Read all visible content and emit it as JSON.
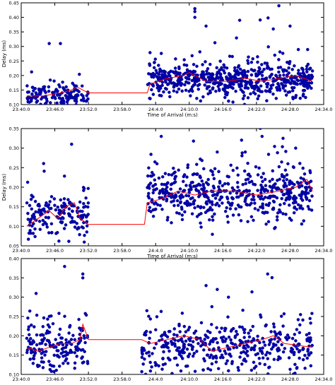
{
  "chart_data": [
    {
      "type": "scatter",
      "xlabel": "Time of Arrival (m:s)",
      "ylabel": "Delay (ms)",
      "xlim": [
        "23:40.0",
        "24:34.0"
      ],
      "ylim": [
        0.1,
        0.45
      ],
      "xticks": [
        "23:40.0",
        "23:46.0",
        "23:52.0",
        "23:58.0",
        "24:4.0",
        "24:10.0",
        "24:16.0",
        "24:22.0",
        "24:28.0",
        "24:34.0"
      ],
      "yticks": [
        "0.10",
        "0.15",
        "0.20",
        "0.25",
        "0.30",
        "0.35",
        "0.40",
        "0.45"
      ],
      "series": [
        {
          "kind": "points",
          "color": "#0000b4",
          "segments": [
            {
              "x_start": "23:41.0",
              "x_end": "23:52.0",
              "mean": 0.13,
              "spread": 0.025,
              "count": 160
            },
            {
              "x_start": "24:2.5",
              "x_end": "24:32.0",
              "mean": 0.18,
              "spread": 0.035,
              "count": 620
            }
          ],
          "outliers": [
            {
              "x": "23:47.0",
              "y": 0.31
            },
            {
              "x": "23:45.0",
              "y": 0.31
            },
            {
              "x": "24:11.0",
              "y": 0.43
            },
            {
              "x": "24:11.0",
              "y": 0.42
            },
            {
              "x": "24:11.0",
              "y": 0.4
            },
            {
              "x": "24:26.0",
              "y": 0.44
            },
            {
              "x": "24:19.0",
              "y": 0.39
            },
            {
              "x": "24:13.0",
              "y": 0.37
            },
            {
              "x": "24:25.0",
              "y": 0.36
            },
            {
              "x": "24:28.0",
              "y": 0.37
            }
          ]
        },
        {
          "kind": "line",
          "color": "#ff0000",
          "points": [
            [
              "23:41.0",
              0.13
            ],
            [
              "23:44.0",
              0.13
            ],
            [
              "23:47.0",
              0.14
            ],
            [
              "23:49.0",
              0.15
            ],
            [
              "23:50.0",
              0.16
            ],
            [
              "23:52.0",
              0.14
            ],
            [
              "24:2.5",
              0.14
            ],
            [
              "24:3.0",
              0.17
            ],
            [
              "24:6.0",
              0.19
            ],
            [
              "24:9.0",
              0.2
            ],
            [
              "24:10.0",
              0.21
            ],
            [
              "24:13.0",
              0.18
            ],
            [
              "24:17.0",
              0.18
            ],
            [
              "24:20.0",
              0.19
            ],
            [
              "24:23.0",
              0.18
            ],
            [
              "24:26.0",
              0.19
            ],
            [
              "24:29.0",
              0.2
            ],
            [
              "24:32.0",
              0.18
            ]
          ]
        }
      ]
    },
    {
      "type": "scatter",
      "xlabel": "Time of Arrival (m:s)",
      "ylabel": "Delay (ms)",
      "xlim": [
        "23:40.0",
        "24:34.0"
      ],
      "ylim": [
        0.05,
        0.35
      ],
      "xticks": [
        "23:40.0",
        "23:46.0",
        "23:52.0",
        "23:58.0",
        "24:4.0",
        "24:10.0",
        "24:16.0",
        "24:22.0",
        "24:28.0",
        "24:34.0"
      ],
      "yticks": [
        "0.05",
        "0.10",
        "0.15",
        "0.20",
        "0.25",
        "0.30",
        "0.35"
      ],
      "series": [
        {
          "kind": "points",
          "color": "#0000b4",
          "segments": [
            {
              "x_start": "23:41.0",
              "x_end": "23:52.0",
              "mean": 0.13,
              "spread": 0.035,
              "count": 170
            },
            {
              "x_start": "24:2.5",
              "x_end": "24:32.0",
              "mean": 0.18,
              "spread": 0.04,
              "count": 560
            }
          ],
          "outliers": [
            {
              "x": "23:49.0",
              "y": 0.31
            },
            {
              "x": "24:5.0",
              "y": 0.33
            },
            {
              "x": "24:23.0",
              "y": 0.33
            },
            {
              "x": "24:29.0",
              "y": 0.3
            },
            {
              "x": "24:20.0",
              "y": 0.29
            },
            {
              "x": "24:15.0",
              "y": 0.29
            }
          ]
        },
        {
          "kind": "line",
          "color": "#ff0000",
          "points": [
            [
              "23:41.0",
              0.1
            ],
            [
              "23:43.0",
              0.12
            ],
            [
              "23:45.0",
              0.14
            ],
            [
              "23:46.5",
              0.12
            ],
            [
              "23:48.0",
              0.15
            ],
            [
              "23:49.5",
              0.16
            ],
            [
              "23:50.5",
              0.12
            ],
            [
              "23:52.0",
              0.105
            ],
            [
              "24:2.0",
              0.105
            ],
            [
              "24:2.5",
              0.16
            ],
            [
              "24:5.0",
              0.17
            ],
            [
              "24:8.0",
              0.19
            ],
            [
              "24:11.0",
              0.18
            ],
            [
              "24:14.0",
              0.19
            ],
            [
              "24:18.0",
              0.19
            ],
            [
              "24:22.0",
              0.18
            ],
            [
              "24:26.0",
              0.19
            ],
            [
              "24:29.0",
              0.2
            ],
            [
              "24:31.0",
              0.22
            ],
            [
              "24:32.0",
              0.19
            ]
          ]
        }
      ]
    },
    {
      "type": "scatter",
      "xlabel": "",
      "ylabel": "",
      "xlim": [
        "23:40.0",
        "24:34.0"
      ],
      "ylim": [
        0.1,
        0.4
      ],
      "xticks": [
        "23:40.0",
        "23:46.0",
        "23:52.0",
        "23:58.0",
        "24:4.0",
        "24:10.0",
        "24:16.0",
        "24:22.0",
        "24:28.0",
        "24:34.0"
      ],
      "yticks": [
        "0.10",
        "0.15",
        "0.20",
        "0.25",
        "0.30",
        "0.35",
        "0.40"
      ],
      "series": [
        {
          "kind": "points",
          "color": "#0000b4",
          "segments": [
            {
              "x_start": "23:41.0",
              "x_end": "23:52.0",
              "mean": 0.17,
              "spread": 0.04,
              "count": 180
            },
            {
              "x_start": "24:1.5",
              "x_end": "24:32.0",
              "mean": 0.17,
              "spread": 0.04,
              "count": 420
            }
          ],
          "outliers": [
            {
              "x": "23:51.0",
              "y": 0.36
            },
            {
              "x": "23:51.0",
              "y": 0.35
            },
            {
              "x": "24:13.0",
              "y": 0.33
            },
            {
              "x": "24:15.0",
              "y": 0.32
            },
            {
              "x": "24:24.0",
              "y": 0.36
            },
            {
              "x": "24:17.0",
              "y": 0.3
            }
          ]
        },
        {
          "kind": "line",
          "color": "#ff0000",
          "points": [
            [
              "23:41.0",
              0.17
            ],
            [
              "23:43.0",
              0.16
            ],
            [
              "23:45.0",
              0.17
            ],
            [
              "23:47.0",
              0.18
            ],
            [
              "23:49.0",
              0.18
            ],
            [
              "23:50.5",
              0.19
            ],
            [
              "23:51.0",
              0.23
            ],
            [
              "23:52.0",
              0.19
            ],
            [
              "24:1.5",
              0.19
            ],
            [
              "24:3.0",
              0.18
            ],
            [
              "24:6.0",
              0.19
            ],
            [
              "24:9.0",
              0.2
            ],
            [
              "24:12.0",
              0.19
            ],
            [
              "24:14.0",
              0.16
            ],
            [
              "24:17.0",
              0.17
            ],
            [
              "24:20.0",
              0.18
            ],
            [
              "24:23.0",
              0.19
            ],
            [
              "24:25.0",
              0.2
            ],
            [
              "24:27.0",
              0.18
            ],
            [
              "24:32.0",
              0.17
            ]
          ]
        }
      ]
    }
  ]
}
